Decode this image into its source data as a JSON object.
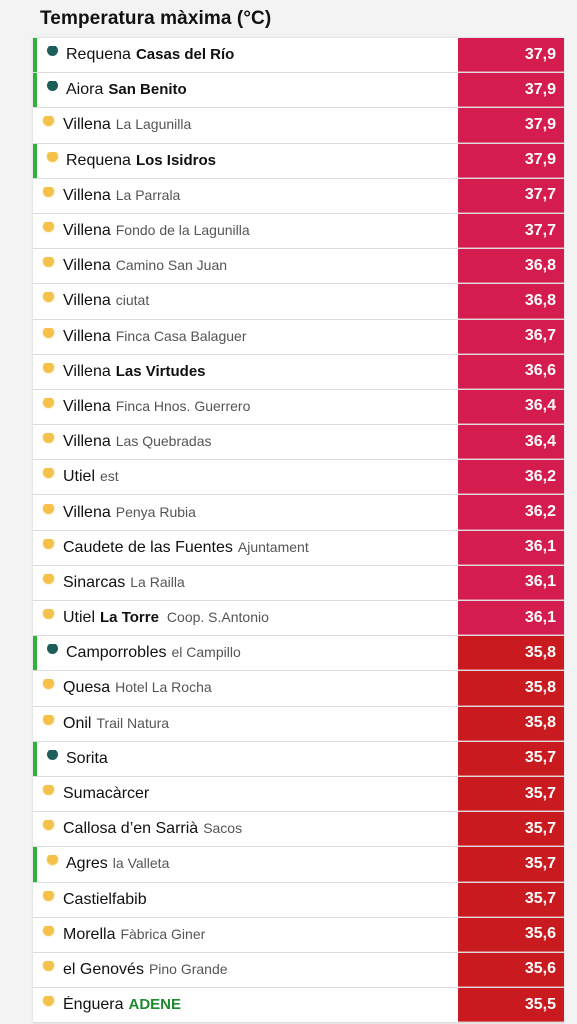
{
  "title": "Temperatura màxima (°C)",
  "colors": {
    "hot": "#d51c4e",
    "warm": "#c91b1f",
    "marker": "#2db23a"
  },
  "rows": [
    {
      "town": "Requena",
      "station": "Casas del Río",
      "station_bold": true,
      "extra": "",
      "icon": "green",
      "mark": true,
      "value": "37,9",
      "level": "hot"
    },
    {
      "town": "Aiora",
      "station": "San Benito",
      "station_bold": true,
      "extra": "",
      "icon": "green",
      "mark": true,
      "value": "37,9",
      "level": "hot"
    },
    {
      "town": "Villena",
      "station": "La Lagunilla",
      "station_bold": false,
      "extra": "",
      "icon": "sun",
      "mark": false,
      "value": "37,9",
      "level": "hot"
    },
    {
      "town": "Requena",
      "station": "Los Isidros",
      "station_bold": true,
      "extra": "",
      "icon": "sun",
      "mark": true,
      "value": "37,9",
      "level": "hot"
    },
    {
      "town": "Villena",
      "station": "La Parrala",
      "station_bold": false,
      "extra": "",
      "icon": "sun",
      "mark": false,
      "value": "37,7",
      "level": "hot"
    },
    {
      "town": "Villena",
      "station": "Fondo de la Lagunilla",
      "station_bold": false,
      "extra": "",
      "icon": "sun",
      "mark": false,
      "value": "37,7",
      "level": "hot"
    },
    {
      "town": "Villena",
      "station": "Camino San Juan",
      "station_bold": false,
      "extra": "",
      "icon": "sun",
      "mark": false,
      "value": "36,8",
      "level": "hot"
    },
    {
      "town": "Villena",
      "station": "ciutat",
      "station_bold": false,
      "extra": "",
      "icon": "sun",
      "mark": false,
      "value": "36,8",
      "level": "hot"
    },
    {
      "town": "Villena",
      "station": "Finca Casa Balaguer",
      "station_bold": false,
      "extra": "",
      "icon": "sun",
      "mark": false,
      "value": "36,7",
      "level": "hot"
    },
    {
      "town": "Villena",
      "station": "Las Virtudes",
      "station_bold": true,
      "extra": "",
      "icon": "sun",
      "mark": false,
      "value": "36,6",
      "level": "hot"
    },
    {
      "town": "Villena",
      "station": "Finca Hnos. Guerrero",
      "station_bold": false,
      "extra": "",
      "icon": "sun",
      "mark": false,
      "value": "36,4",
      "level": "hot"
    },
    {
      "town": "Villena",
      "station": "Las Quebradas",
      "station_bold": false,
      "extra": "",
      "icon": "sun",
      "mark": false,
      "value": "36,4",
      "level": "hot"
    },
    {
      "town": "Utiel",
      "station": "est",
      "station_bold": false,
      "extra": "",
      "icon": "sun",
      "mark": false,
      "value": "36,2",
      "level": "hot"
    },
    {
      "town": "Villena",
      "station": "Penya Rubia",
      "station_bold": false,
      "extra": "",
      "icon": "sun",
      "mark": false,
      "value": "36,2",
      "level": "hot"
    },
    {
      "town": "Caudete de las Fuentes",
      "station": "Ajuntament",
      "station_bold": false,
      "extra": "",
      "icon": "sun",
      "mark": false,
      "value": "36,1",
      "level": "hot"
    },
    {
      "town": "Sinarcas",
      "station": "La Railla",
      "station_bold": false,
      "extra": "",
      "icon": "sun",
      "mark": false,
      "value": "36,1",
      "level": "hot"
    },
    {
      "town": "Utiel",
      "station": "La Torre",
      "station_bold": true,
      "extra": "Coop. S.Antonio",
      "icon": "sun",
      "mark": false,
      "value": "36,1",
      "level": "hot"
    },
    {
      "town": "Camporrobles",
      "station": "el Campillo",
      "station_bold": false,
      "extra": "",
      "icon": "green",
      "mark": true,
      "value": "35,8",
      "level": "warm"
    },
    {
      "town": "Quesa",
      "station": "Hotel La Rocha",
      "station_bold": false,
      "extra": "",
      "icon": "sun",
      "mark": false,
      "value": "35,8",
      "level": "warm"
    },
    {
      "town": "Onil",
      "station": "Trail Natura",
      "station_bold": false,
      "extra": "",
      "icon": "sun",
      "mark": false,
      "value": "35,8",
      "level": "warm"
    },
    {
      "town": "Sorita",
      "station": "",
      "station_bold": false,
      "extra": "",
      "icon": "green",
      "mark": true,
      "value": "35,7",
      "level": "warm"
    },
    {
      "town": "Sumacàrcer",
      "station": "",
      "station_bold": false,
      "extra": "",
      "icon": "sun",
      "mark": false,
      "value": "35,7",
      "level": "warm"
    },
    {
      "town": "Callosa d’en Sarrià",
      "station": "Sacos",
      "station_bold": false,
      "extra": "",
      "icon": "sun",
      "mark": false,
      "value": "35,7",
      "level": "warm"
    },
    {
      "town": "Agres",
      "station": "la Valleta",
      "station_bold": false,
      "extra": "",
      "icon": "sun",
      "mark": true,
      "value": "35,7",
      "level": "warm"
    },
    {
      "town": "Castielfabib",
      "station": "",
      "station_bold": false,
      "extra": "",
      "icon": "sun",
      "mark": false,
      "value": "35,7",
      "level": "warm"
    },
    {
      "town": "Morella",
      "station": "Fàbrica Giner",
      "station_bold": false,
      "extra": "",
      "icon": "sun",
      "mark": false,
      "value": "35,6",
      "level": "warm"
    },
    {
      "town": "el Genovés",
      "station": "Pino Grande",
      "station_bold": false,
      "extra": "",
      "icon": "sun",
      "mark": false,
      "value": "35,6",
      "level": "warm"
    },
    {
      "town": "Énguera",
      "station": "ADENE",
      "station_bold": true,
      "station_green": true,
      "extra": "",
      "icon": "sun",
      "mark": false,
      "value": "35,5",
      "level": "warm"
    }
  ]
}
